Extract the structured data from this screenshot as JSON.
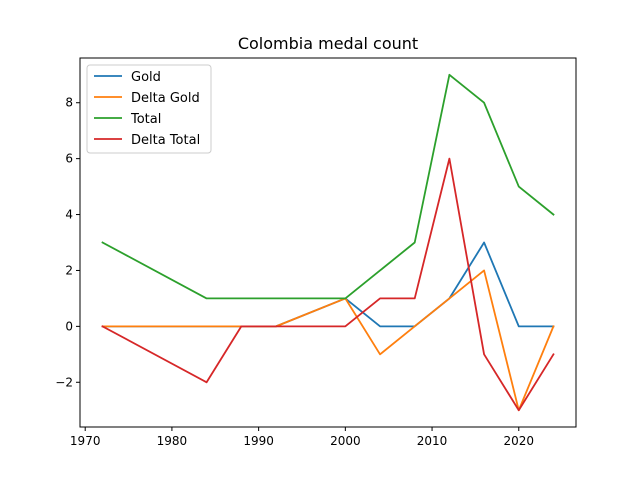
{
  "chart_data": {
    "type": "line",
    "title": "Colombia medal count",
    "xlabel": "",
    "ylabel": "",
    "x": [
      1972,
      1984,
      1988,
      1992,
      2000,
      2004,
      2008,
      2012,
      2016,
      2020,
      2024
    ],
    "xlim": [
      1969.4,
      2026.6
    ],
    "ylim": [
      -3.6,
      9.6
    ],
    "xticks": [
      1970,
      1980,
      1990,
      2000,
      2010,
      2020
    ],
    "yticks": [
      -2,
      0,
      2,
      4,
      6,
      8
    ],
    "ytick_labels": [
      "−2",
      "0",
      "2",
      "4",
      "6",
      "8"
    ],
    "grid": false,
    "legend_position": "upper-left",
    "series": [
      {
        "name": "Gold",
        "color": "#1f77b4",
        "values": [
          0,
          0,
          0,
          0,
          1,
          0,
          0,
          1,
          3,
          0,
          0
        ]
      },
      {
        "name": "Delta Gold",
        "color": "#ff7f0e",
        "values": [
          0,
          0,
          0,
          0,
          1,
          -1,
          0,
          1,
          2,
          -3,
          0
        ]
      },
      {
        "name": "Total",
        "color": "#2ca02c",
        "values": [
          3,
          1,
          1,
          1,
          1,
          2,
          3,
          9,
          8,
          5,
          4
        ]
      },
      {
        "name": "Delta Total",
        "color": "#d62728",
        "values": [
          0,
          -2,
          0,
          0,
          0,
          1,
          1,
          6,
          -1,
          -3,
          -1
        ]
      }
    ]
  }
}
